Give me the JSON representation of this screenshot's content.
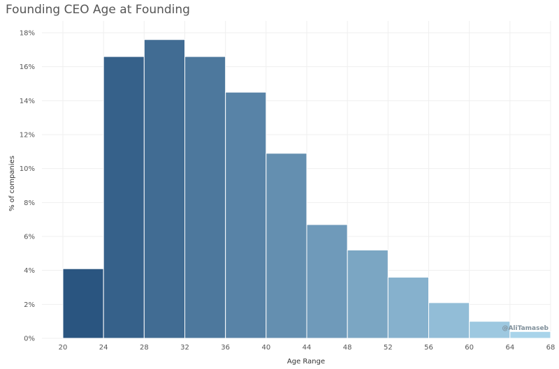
{
  "chart_data": {
    "type": "histogram",
    "title": "Founding CEO Age at Founding",
    "xlabel": "Age Range",
    "ylabel": "% of companies",
    "bins": [
      {
        "start": 20,
        "end": 24,
        "value": 4.1
      },
      {
        "start": 24,
        "end": 28,
        "value": 16.6
      },
      {
        "start": 28,
        "end": 32,
        "value": 17.6
      },
      {
        "start": 32,
        "end": 36,
        "value": 16.6
      },
      {
        "start": 36,
        "end": 40,
        "value": 14.5
      },
      {
        "start": 40,
        "end": 44,
        "value": 10.9
      },
      {
        "start": 44,
        "end": 48,
        "value": 6.7
      },
      {
        "start": 48,
        "end": 52,
        "value": 5.2
      },
      {
        "start": 52,
        "end": 56,
        "value": 3.6
      },
      {
        "start": 56,
        "end": 60,
        "value": 2.1
      },
      {
        "start": 60,
        "end": 64,
        "value": 1.0
      },
      {
        "start": 64,
        "end": 68,
        "value": 0.4
      }
    ],
    "x_ticks": [
      "20",
      "24",
      "28",
      "32",
      "36",
      "40",
      "44",
      "48",
      "52",
      "56",
      "60",
      "64",
      "68"
    ],
    "y_ticks": [
      "0%",
      "2%",
      "4%",
      "6%",
      "8%",
      "10%",
      "12%",
      "14%",
      "16%",
      "18%"
    ],
    "xlim": [
      20,
      68
    ],
    "ylim": [
      0,
      18
    ],
    "grid": true,
    "watermark": "@AliTamaseb",
    "colors": {
      "bar_dark": "#2a5580",
      "bar_light": "#a9d4ea",
      "grid": "#efefef",
      "axis_text": "#555555",
      "watermark": "#7f8f9a"
    }
  }
}
